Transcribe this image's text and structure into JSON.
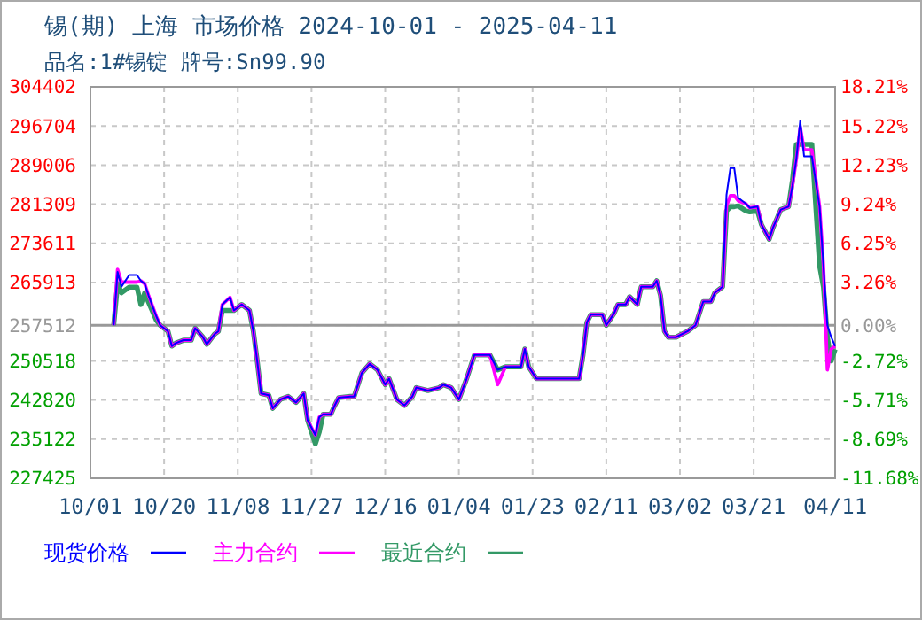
{
  "chart_data": {
    "type": "line",
    "title": "锡(期) 上海 市场价格 2024-10-01 - 2025-04-11",
    "subtitle": "品名:1#锡锭 牌号:Sn99.90",
    "x": [
      "2024-10-07",
      "2024-10-08",
      "2024-10-09",
      "2024-10-11",
      "2024-10-13",
      "2024-10-14",
      "2024-10-15",
      "2024-10-16",
      "2024-10-18",
      "2024-10-19",
      "2024-10-21",
      "2024-10-22",
      "2024-10-23",
      "2024-10-25",
      "2024-10-27",
      "2024-10-28",
      "2024-10-30",
      "2024-10-31",
      "2024-11-02",
      "2024-11-03",
      "2024-11-04",
      "2024-11-06",
      "2024-11-07",
      "2024-11-09",
      "2024-11-11",
      "2024-11-12",
      "2024-11-13",
      "2024-11-14",
      "2024-11-16",
      "2024-11-17",
      "2024-11-19",
      "2024-11-21",
      "2024-11-23",
      "2024-11-25",
      "2024-11-26",
      "2024-11-28",
      "2024-11-29",
      "2024-11-30",
      "2024-12-02",
      "2024-12-03",
      "2024-12-04",
      "2024-12-07",
      "2024-12-08",
      "2024-12-10",
      "2024-12-12",
      "2024-12-14",
      "2024-12-16",
      "2024-12-17",
      "2024-12-19",
      "2024-12-21",
      "2024-12-23",
      "2024-12-24",
      "2024-12-27",
      "2024-12-30",
      "2024-12-31",
      "2025-01-02",
      "2025-01-04",
      "2025-01-06",
      "2025-01-08",
      "2025-01-12",
      "2025-01-14",
      "2025-01-16",
      "2025-01-19",
      "2025-01-20",
      "2025-01-21",
      "2025-01-22",
      "2025-01-24",
      "2025-02-04",
      "2025-02-05",
      "2025-02-06",
      "2025-02-07",
      "2025-02-10",
      "2025-02-11",
      "2025-02-13",
      "2025-02-14",
      "2025-02-16",
      "2025-02-17",
      "2025-02-19",
      "2025-02-20",
      "2025-02-23",
      "2025-02-24",
      "2025-02-25",
      "2025-02-26",
      "2025-02-27",
      "2025-03-01",
      "2025-03-04",
      "2025-03-06",
      "2025-03-08",
      "2025-03-10",
      "2025-03-11",
      "2025-03-13",
      "2025-03-14",
      "2025-03-15",
      "2025-03-16",
      "2025-03-17",
      "2025-03-19",
      "2025-03-20",
      "2025-03-22",
      "2025-03-23",
      "2025-03-25",
      "2025-03-26",
      "2025-03-28",
      "2025-03-30",
      "2025-03-31",
      "2025-04-01",
      "2025-04-02",
      "2025-04-03",
      "2025-04-05",
      "2025-04-07",
      "2025-04-08",
      "2025-04-09",
      "2025-04-10",
      "2025-04-11"
    ],
    "series": [
      {
        "name": "现货价格",
        "color": "#0000ff",
        "values": [
          257512,
          268000,
          265100,
          267400,
          267400,
          266250,
          265670,
          263340,
          259250,
          257500,
          256340,
          253420,
          254000,
          254590,
          254590,
          256920,
          255170,
          253770,
          255760,
          256340,
          261590,
          263000,
          260420,
          261590,
          260420,
          256340,
          250510,
          244090,
          243740,
          241180,
          242930,
          243510,
          242340,
          244090,
          238840,
          235930,
          239430,
          240010,
          240010,
          241760,
          243280,
          243510,
          243510,
          248170,
          249920,
          248750,
          245840,
          247010,
          242930,
          241760,
          243510,
          245260,
          244680,
          245260,
          245840,
          245260,
          242930,
          247010,
          251670,
          251670,
          248750,
          249340,
          249340,
          249340,
          252840,
          249340,
          247010,
          247010,
          251670,
          258090,
          259600,
          259600,
          257500,
          259840,
          261590,
          261590,
          263110,
          261590,
          265090,
          265090,
          266250,
          263340,
          256340,
          255170,
          255170,
          256340,
          257500,
          262170,
          262170,
          263920,
          265090,
          283170,
          288410,
          288410,
          282580,
          281420,
          280600,
          280830,
          277330,
          274420,
          276750,
          280250,
          280830,
          284910,
          290160,
          297740,
          290740,
          290740,
          280830,
          269170,
          257500,
          255170,
          253420
        ]
      },
      {
        "name": "主力合约",
        "color": "#ff00ff",
        "values": [
          257512,
          268500,
          266000,
          266000,
          266000,
          266250,
          265670,
          263340,
          259250,
          257500,
          256340,
          253420,
          254000,
          254590,
          254590,
          256920,
          255170,
          253770,
          255760,
          256340,
          261590,
          263000,
          260420,
          261590,
          260420,
          256340,
          250510,
          244090,
          243740,
          241180,
          242930,
          243510,
          242340,
          244090,
          238840,
          235930,
          239430,
          240010,
          240010,
          241760,
          243280,
          243510,
          243510,
          248170,
          249920,
          248750,
          245840,
          247010,
          242930,
          241760,
          243510,
          245260,
          244680,
          245260,
          245840,
          245260,
          242930,
          247010,
          251670,
          251670,
          245840,
          249340,
          249340,
          249340,
          252840,
          249340,
          247010,
          247010,
          251670,
          258090,
          259600,
          259600,
          257500,
          259840,
          261590,
          261590,
          263110,
          261590,
          265090,
          265090,
          266250,
          263340,
          256340,
          255170,
          255170,
          256340,
          257500,
          262170,
          262170,
          263920,
          265090,
          281000,
          283000,
          283000,
          282000,
          281420,
          280600,
          280830,
          277330,
          274420,
          276750,
          280250,
          280830,
          284910,
          290160,
          296500,
          292000,
          292000,
          280830,
          269170,
          248750,
          252840,
          253420
        ]
      },
      {
        "name": "最近合约",
        "color": "#339966",
        "values": [
          257512,
          265670,
          263900,
          265000,
          265000,
          261590,
          263900,
          262000,
          258500,
          257500,
          256340,
          253420,
          254000,
          254590,
          254590,
          256920,
          255170,
          253770,
          255760,
          256340,
          260420,
          260420,
          260420,
          261590,
          260420,
          256340,
          250510,
          244090,
          243740,
          241180,
          242930,
          243510,
          242340,
          244090,
          238840,
          234180,
          236510,
          240010,
          240010,
          241760,
          243280,
          243510,
          243510,
          248170,
          249920,
          248750,
          245840,
          247010,
          242930,
          241760,
          243510,
          245260,
          244680,
          245260,
          245840,
          245260,
          242930,
          247010,
          251670,
          251670,
          248750,
          249340,
          249340,
          249340,
          252840,
          249340,
          247010,
          247010,
          251670,
          258090,
          259600,
          259600,
          257500,
          259840,
          261590,
          261590,
          263110,
          261590,
          265090,
          265090,
          266250,
          263340,
          256340,
          255170,
          255170,
          256340,
          257500,
          262170,
          262170,
          263920,
          265090,
          280000,
          280830,
          280830,
          281000,
          280000,
          279800,
          280000,
          277330,
          274420,
          276750,
          280250,
          280830,
          286000,
          293080,
          293080,
          293080,
          293080,
          269170,
          265000,
          255170,
          250500,
          252800
        ]
      }
    ],
    "xlim": [
      "2024-10-01",
      "2025-04-11"
    ],
    "xticks": [
      {
        "value": "2024-10-01",
        "label": "10/01"
      },
      {
        "value": "2024-10-20",
        "label": "10/20"
      },
      {
        "value": "2024-11-08",
        "label": "11/08"
      },
      {
        "value": "2024-11-27",
        "label": "11/27"
      },
      {
        "value": "2024-12-16",
        "label": "12/16"
      },
      {
        "value": "2025-01-04",
        "label": "01/04"
      },
      {
        "value": "2025-01-23",
        "label": "01/23"
      },
      {
        "value": "2025-02-11",
        "label": "02/11"
      },
      {
        "value": "2025-03-02",
        "label": "03/02"
      },
      {
        "value": "2025-03-21",
        "label": "03/21"
      },
      {
        "value": "2025-04-11",
        "label": "04/11"
      }
    ],
    "ylim": [
      227425,
      304402
    ],
    "yticks": [
      227425,
      235122,
      242820,
      250518,
      257512,
      265913,
      273611,
      281309,
      289006,
      296704,
      304402
    ],
    "y2lim": [
      -11.68,
      18.21
    ],
    "y2ticks": [
      {
        "value": -11.68,
        "label": "-11.68%"
      },
      {
        "value": -8.69,
        "label": "-8.69%"
      },
      {
        "value": -5.71,
        "label": "-5.71%"
      },
      {
        "value": -2.72,
        "label": "-2.72%"
      },
      {
        "value": 0,
        "label": "0.00%"
      },
      {
        "value": 3.26,
        "label": "3.26%"
      },
      {
        "value": 6.25,
        "label": "6.25%"
      },
      {
        "value": 9.24,
        "label": "9.24%"
      },
      {
        "value": 12.23,
        "label": "12.23%"
      },
      {
        "value": 15.22,
        "label": "15.22%"
      },
      {
        "value": 18.21,
        "label": "18.21%"
      }
    ],
    "ref_lines": [
      {
        "axis": "y",
        "value": 257512,
        "color": "#999999"
      }
    ],
    "grid": true,
    "legend": "bottom",
    "marker": "none",
    "line_style": "solid"
  }
}
